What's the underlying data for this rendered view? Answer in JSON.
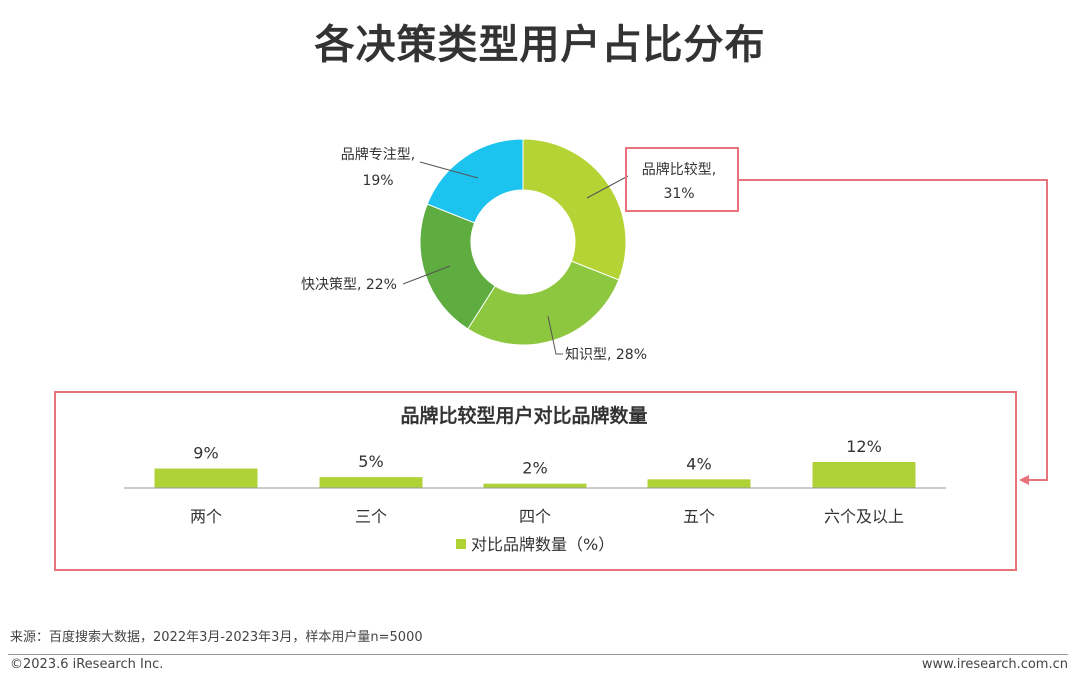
{
  "colors": {
    "slice_1": "#B5D334",
    "slice_2": "#8DC63F",
    "slice_3": "#5FAD41",
    "slice_4": "#1BC3EE",
    "bar": "#AFD236",
    "highlight": "#E8737A",
    "axis": "#999999"
  },
  "footer": {
    "source": "来源：百度搜索大数据，2022年3月-2023年3月，样本用户量n=5000",
    "copyright": "©2023.6 iResearch Inc.",
    "website": "www.iresearch.com.cn"
  },
  "chart_data": [
    {
      "type": "pie",
      "title": "各决策类型用户占比分布",
      "donut": true,
      "slices": [
        {
          "label_line1": "品牌比较型,",
          "label_line2": "31%",
          "value": 31
        },
        {
          "label_line1": "知识型, 28%",
          "label_line2": "",
          "value": 28
        },
        {
          "label_line1": "快决策型, 22%",
          "label_line2": "",
          "value": 22
        },
        {
          "label_line1": "品牌专注型,",
          "label_line2": "19%",
          "value": 19
        }
      ]
    },
    {
      "type": "bar",
      "title": "品牌比较型用户对比品牌数量",
      "categories": [
        "两个",
        "三个",
        "四个",
        "五个",
        "六个及以上"
      ],
      "values": [
        9,
        5,
        2,
        4,
        12
      ],
      "value_labels": [
        "9%",
        "5%",
        "2%",
        "4%",
        "12%"
      ],
      "legend": "对比品牌数量（%）",
      "legend_position": "bottom",
      "ylim": [
        0,
        12
      ]
    }
  ]
}
